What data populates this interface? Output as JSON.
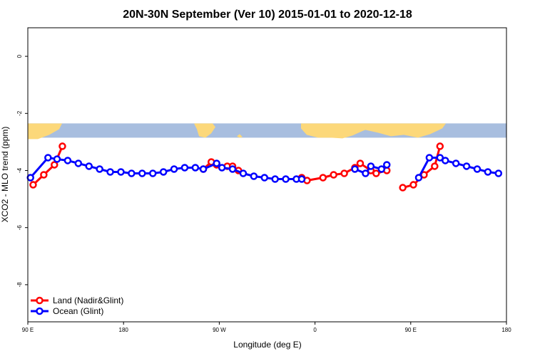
{
  "chart_data": {
    "type": "line",
    "title": "20N-30N September (Ver 10)   2015-01-01 to 2020-12-18",
    "xlabel": "Longitude (deg E)",
    "ylabel": "XCO2 - MLO trend (ppm)",
    "xlim": [
      90,
      540
    ],
    "ylim": [
      -9.3,
      1.0
    ],
    "x_ticks": [
      {
        "value": 90,
        "label": "90 E"
      },
      {
        "value": 180,
        "label": "180"
      },
      {
        "value": 270,
        "label": "90 W"
      },
      {
        "value": 360,
        "label": "0"
      },
      {
        "value": 450,
        "label": "90 E"
      },
      {
        "value": 540,
        "label": "180"
      }
    ],
    "y_ticks": [
      {
        "value": 0,
        "label": "0"
      },
      {
        "value": -2,
        "label": "-2"
      },
      {
        "value": -4,
        "label": "-4"
      },
      {
        "value": -6,
        "label": "-6"
      },
      {
        "value": -8,
        "label": "-8"
      }
    ],
    "map_band": {
      "ylim": [
        -2.35,
        -2.85
      ],
      "ocean_color": "#a8bedf",
      "land_color": "#fcd87a"
    },
    "legend_position": "bottom-left",
    "series": [
      {
        "name": "Land (Nadir&Glint)",
        "color": "#ff0000",
        "segments": [
          [
            [
              95,
              -4.5
            ],
            [
              105,
              -4.15
            ],
            [
              115,
              -3.8
            ],
            [
              122.5,
              -3.15
            ]
          ],
          [
            [
              255,
              -3.95
            ],
            [
              262.5,
              -3.7
            ],
            [
              267.5,
              -3.8
            ],
            [
              277.5,
              -3.85
            ],
            [
              282.5,
              -3.85
            ],
            [
              288,
              -4.0
            ]
          ],
          [
            [
              347.5,
              -4.25
            ],
            [
              352.5,
              -4.35
            ],
            [
              367.5,
              -4.25
            ],
            [
              377.5,
              -4.15
            ],
            [
              387.5,
              -4.1
            ],
            [
              397.5,
              -3.9
            ],
            [
              402.5,
              -3.75
            ],
            [
              412.5,
              -4.0
            ],
            [
              417.5,
              -4.1
            ],
            [
              427.5,
              -4.0
            ]
          ],
          [
            [
              442.5,
              -4.6
            ],
            [
              452.5,
              -4.5
            ],
            [
              462.5,
              -4.15
            ],
            [
              472.5,
              -3.85
            ],
            [
              477.5,
              -3.15
            ]
          ]
        ]
      },
      {
        "name": "Ocean (Glint)",
        "color": "#0000ff",
        "segments": [
          [
            [
              92.5,
              -4.25
            ],
            [
              109,
              -3.55
            ],
            [
              117.5,
              -3.6
            ],
            [
              127.5,
              -3.65
            ],
            [
              137.5,
              -3.75
            ],
            [
              147.5,
              -3.85
            ],
            [
              157.5,
              -3.95
            ],
            [
              167.5,
              -4.05
            ],
            [
              177.5,
              -4.05
            ],
            [
              187.5,
              -4.1
            ],
            [
              197.5,
              -4.1
            ],
            [
              207.5,
              -4.1
            ],
            [
              217.5,
              -4.05
            ],
            [
              227.5,
              -3.95
            ],
            [
              237.5,
              -3.9
            ],
            [
              247.5,
              -3.9
            ],
            [
              255,
              -3.95
            ],
            [
              267.5,
              -3.75
            ],
            [
              272.5,
              -3.9
            ],
            [
              282.5,
              -3.95
            ],
            [
              292.5,
              -4.1
            ],
            [
              302.5,
              -4.2
            ],
            [
              312.5,
              -4.25
            ],
            [
              322.5,
              -4.3
            ],
            [
              332.5,
              -4.3
            ],
            [
              342.5,
              -4.3
            ],
            [
              347.5,
              -4.3
            ]
          ],
          [
            [
              397.5,
              -3.95
            ],
            [
              407.5,
              -4.1
            ],
            [
              412.5,
              -3.85
            ],
            [
              422.5,
              -3.95
            ],
            [
              427.5,
              -3.8
            ]
          ],
          [
            [
              457.5,
              -4.25
            ],
            [
              467.5,
              -3.55
            ],
            [
              477.5,
              -3.55
            ],
            [
              482.5,
              -3.65
            ],
            [
              492.5,
              -3.75
            ],
            [
              502.5,
              -3.85
            ],
            [
              512.5,
              -3.95
            ],
            [
              522.5,
              -4.05
            ],
            [
              532.5,
              -4.1
            ]
          ]
        ]
      }
    ]
  }
}
